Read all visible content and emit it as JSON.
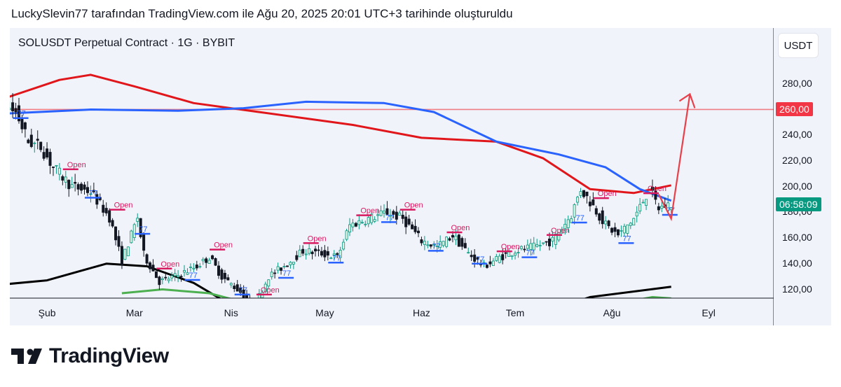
{
  "header": {
    "caption": "LuckySlevin77 tarafından TradingView.com ile Ağu 20, 2025 20:01 UTC+3 tarihinde oluşturuldu"
  },
  "chart": {
    "symbol": "SOLUSDT Perpetual Contract · 1G · BYBIT",
    "currency": "USDT"
  },
  "badges": {
    "level": {
      "text": "260,00",
      "color": "#f23645"
    },
    "countdown": {
      "text": "06:58:09",
      "color": "#089981"
    }
  },
  "logo": {
    "text": "TradingView"
  },
  "colors": {
    "up": "#089981",
    "down": "#131722",
    "red_ma": "#e0161b",
    "blue_ma": "#2962ff",
    "black_ma": "#000000",
    "green_ma": "#4caf50",
    "arrow": "#e8404a",
    "tag_open": "#d81b60",
    "tag_77": "#2962ff"
  },
  "chart_data": {
    "type": "candlestick",
    "title": "SOLUSDT Perpetual Contract · 1G · BYBIT",
    "currency": "USDT",
    "x_ticks": [
      "Şub",
      "Mar",
      "Nis",
      "May",
      "Haz",
      "Tem",
      "Ağu",
      "Eyl"
    ],
    "y_ticks": [
      "120,00",
      "140,00",
      "160,00",
      "180,00",
      "200,00",
      "220,00",
      "240,00",
      "260,00",
      "280,00"
    ],
    "ylim": [
      102,
      313
    ],
    "horizontal_level": 260,
    "countdown": "06:58:09",
    "price_path": [
      {
        "date": "2025-01-05",
        "close": 215
      },
      {
        "date": "2025-01-10",
        "close": 190
      },
      {
        "date": "2025-01-14",
        "close": 182
      },
      {
        "date": "2025-01-18",
        "close": 230
      },
      {
        "date": "2025-01-20",
        "close": 262
      },
      {
        "date": "2025-01-23",
        "close": 258
      },
      {
        "date": "2025-01-27",
        "close": 235
      },
      {
        "date": "2025-01-31",
        "close": 231
      },
      {
        "date": "2025-02-04",
        "close": 215
      },
      {
        "date": "2025-02-10",
        "close": 200
      },
      {
        "date": "2025-02-16",
        "close": 196
      },
      {
        "date": "2025-02-22",
        "close": 176
      },
      {
        "date": "2025-02-26",
        "close": 142
      },
      {
        "date": "2025-03-03",
        "close": 176
      },
      {
        "date": "2025-03-05",
        "close": 147
      },
      {
        "date": "2025-03-10",
        "close": 126
      },
      {
        "date": "2025-03-16",
        "close": 131
      },
      {
        "date": "2025-03-22",
        "close": 138
      },
      {
        "date": "2025-03-26",
        "close": 145
      },
      {
        "date": "2025-03-30",
        "close": 130
      },
      {
        "date": "2025-04-05",
        "close": 118
      },
      {
        "date": "2025-04-09",
        "close": 105
      },
      {
        "date": "2025-04-14",
        "close": 130
      },
      {
        "date": "2025-04-20",
        "close": 140
      },
      {
        "date": "2025-04-25",
        "close": 150
      },
      {
        "date": "2025-05-01",
        "close": 148
      },
      {
        "date": "2025-05-06",
        "close": 145
      },
      {
        "date": "2025-05-10",
        "close": 170
      },
      {
        "date": "2025-05-16",
        "close": 175
      },
      {
        "date": "2025-05-22",
        "close": 180
      },
      {
        "date": "2025-05-27",
        "close": 175
      },
      {
        "date": "2025-06-02",
        "close": 158
      },
      {
        "date": "2025-06-07",
        "close": 153
      },
      {
        "date": "2025-06-12",
        "close": 162
      },
      {
        "date": "2025-06-17",
        "close": 148
      },
      {
        "date": "2025-06-22",
        "close": 138
      },
      {
        "date": "2025-06-27",
        "close": 145
      },
      {
        "date": "2025-07-02",
        "close": 150
      },
      {
        "date": "2025-07-08",
        "close": 153
      },
      {
        "date": "2025-07-14",
        "close": 158
      },
      {
        "date": "2025-07-20",
        "close": 178
      },
      {
        "date": "2025-07-23",
        "close": 198
      },
      {
        "date": "2025-07-27",
        "close": 185
      },
      {
        "date": "2025-07-31",
        "close": 170
      },
      {
        "date": "2025-08-04",
        "close": 162
      },
      {
        "date": "2025-08-09",
        "close": 175
      },
      {
        "date": "2025-08-14",
        "close": 198
      },
      {
        "date": "2025-08-17",
        "close": 183
      },
      {
        "date": "2025-08-20",
        "close": 186
      }
    ],
    "series": [
      {
        "color": "#e0161b",
        "points": [
          {
            "date": "2025-01-01",
            "value": 268
          },
          {
            "date": "2025-01-20",
            "value": 270
          },
          {
            "date": "2025-02-05",
            "value": 283
          },
          {
            "date": "2025-02-15",
            "value": 287
          },
          {
            "date": "2025-03-01",
            "value": 278
          },
          {
            "date": "2025-03-20",
            "value": 265
          },
          {
            "date": "2025-04-10",
            "value": 258
          },
          {
            "date": "2025-05-10",
            "value": 248
          },
          {
            "date": "2025-06-01",
            "value": 238
          },
          {
            "date": "2025-06-25",
            "value": 235
          },
          {
            "date": "2025-07-10",
            "value": 222
          },
          {
            "date": "2025-07-25",
            "value": 198
          },
          {
            "date": "2025-08-08",
            "value": 195
          },
          {
            "date": "2025-08-20",
            "value": 201
          }
        ]
      },
      {
        "color": "#2962ff",
        "points": [
          {
            "date": "2025-01-01",
            "value": 243
          },
          {
            "date": "2025-01-20",
            "value": 257
          },
          {
            "date": "2025-02-15",
            "value": 260
          },
          {
            "date": "2025-03-15",
            "value": 259
          },
          {
            "date": "2025-04-05",
            "value": 261
          },
          {
            "date": "2025-04-25",
            "value": 266
          },
          {
            "date": "2025-05-20",
            "value": 265
          },
          {
            "date": "2025-06-05",
            "value": 258
          },
          {
            "date": "2025-06-25",
            "value": 235
          },
          {
            "date": "2025-07-15",
            "value": 225
          },
          {
            "date": "2025-07-30",
            "value": 215
          },
          {
            "date": "2025-08-10",
            "value": 198
          },
          {
            "date": "2025-08-20",
            "value": 189
          }
        ]
      },
      {
        "color": "#000000",
        "points": [
          {
            "date": "2025-01-01",
            "value": 120
          },
          {
            "date": "2025-02-01",
            "value": 127
          },
          {
            "date": "2025-02-20",
            "value": 140
          },
          {
            "date": "2025-03-05",
            "value": 138
          },
          {
            "date": "2025-03-20",
            "value": 125
          },
          {
            "date": "2025-04-05",
            "value": 102
          },
          {
            "date": "2025-07-10",
            "value": 102
          },
          {
            "date": "2025-07-25",
            "value": 114
          },
          {
            "date": "2025-08-20",
            "value": 122
          }
        ]
      },
      {
        "color": "#4caf50",
        "points": [
          {
            "date": "2025-02-25",
            "value": 117
          },
          {
            "date": "2025-03-10",
            "value": 120
          },
          {
            "date": "2025-03-25",
            "value": 117
          },
          {
            "date": "2025-04-05",
            "value": 110
          },
          {
            "date": "2025-04-12",
            "value": 102
          },
          {
            "date": "2025-07-28",
            "value": 102
          },
          {
            "date": "2025-08-05",
            "value": 110
          },
          {
            "date": "2025-08-14",
            "value": 114
          },
          {
            "date": "2025-08-20",
            "value": 113
          }
        ]
      }
    ],
    "projection": [
      {
        "date": "2025-08-20",
        "value": 175
      },
      {
        "date": "2025-08-26",
        "value": 272
      }
    ]
  }
}
